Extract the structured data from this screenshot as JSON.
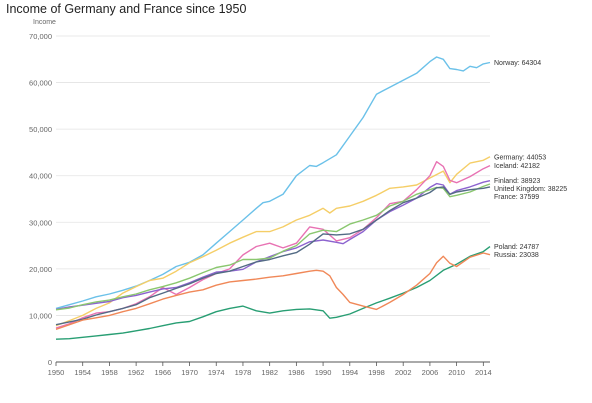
{
  "chart_data": {
    "type": "line",
    "title": "Income of Germany and France since 1950",
    "ylabel": "Income",
    "xlabel": "",
    "xlim": [
      1950,
      2015
    ],
    "ylim": [
      0,
      70000
    ],
    "yticks": [
      0,
      10000,
      20000,
      30000,
      40000,
      50000,
      60000,
      70000
    ],
    "ytick_labels": [
      "0",
      "10,000",
      "20,000",
      "30,000",
      "40,000",
      "50,000",
      "60,000",
      "70,000"
    ],
    "xticks": [
      1950,
      1954,
      1958,
      1962,
      1966,
      1970,
      1974,
      1978,
      1982,
      1986,
      1990,
      1994,
      1998,
      2002,
      2006,
      2010,
      2014
    ],
    "grid": true,
    "legend": "end-of-line labels",
    "series": [
      {
        "name": "Norway",
        "end_label": "Norway: 64304",
        "color": "#6bc1e9",
        "x": [
          1950,
          1952,
          1954,
          1956,
          1958,
          1960,
          1962,
          1964,
          1966,
          1968,
          1970,
          1972,
          1974,
          1976,
          1978,
          1980,
          1981,
          1982,
          1984,
          1986,
          1988,
          1989,
          1990,
          1992,
          1994,
          1996,
          1998,
          2000,
          2002,
          2004,
          2006,
          2007,
          2008,
          2009,
          2010,
          2011,
          2012,
          2013,
          2014,
          2015
        ],
        "y": [
          11500,
          12300,
          13100,
          14000,
          14600,
          15400,
          16300,
          17500,
          18800,
          20500,
          21400,
          23000,
          25500,
          28000,
          30500,
          33000,
          34200,
          34500,
          36000,
          40000,
          42200,
          42000,
          42800,
          44500,
          48500,
          52500,
          57500,
          59000,
          60500,
          62000,
          64500,
          65500,
          65000,
          63000,
          62800,
          62500,
          63500,
          63200,
          64000,
          64304
        ]
      },
      {
        "name": "Germany",
        "end_label": "Germany: 44053",
        "color": "#f5ce67",
        "x": [
          1950,
          1952,
          1954,
          1956,
          1958,
          1960,
          1962,
          1964,
          1966,
          1968,
          1970,
          1972,
          1974,
          1976,
          1978,
          1980,
          1982,
          1984,
          1986,
          1988,
          1990,
          1991,
          1992,
          1994,
          1996,
          1998,
          2000,
          2002,
          2004,
          2006,
          2008,
          2009,
          2010,
          2012,
          2014,
          2015
        ],
        "y": [
          7800,
          8900,
          10000,
          11500,
          12700,
          14800,
          16200,
          17500,
          18000,
          19500,
          21300,
          22600,
          24000,
          25500,
          26800,
          28000,
          28000,
          29000,
          30500,
          31500,
          33000,
          32000,
          33000,
          33500,
          34500,
          35800,
          37300,
          37600,
          38000,
          39500,
          41000,
          38500,
          40300,
          42700,
          43300,
          44053
        ]
      },
      {
        "name": "Iceland",
        "end_label": "Iceland: 42182",
        "color": "#e872b3",
        "x": [
          1950,
          1952,
          1954,
          1956,
          1958,
          1960,
          1962,
          1964,
          1966,
          1968,
          1970,
          1972,
          1974,
          1976,
          1978,
          1980,
          1982,
          1984,
          1986,
          1988,
          1990,
          1992,
          1994,
          1996,
          1998,
          2000,
          2002,
          2004,
          2006,
          2007,
          2008,
          2009,
          2010,
          2012,
          2014,
          2015
        ],
        "y": [
          7300,
          8200,
          9500,
          10500,
          10800,
          11500,
          12500,
          14000,
          16000,
          14500,
          16000,
          17700,
          19000,
          20000,
          23000,
          24800,
          25500,
          24500,
          25500,
          29000,
          28500,
          26000,
          26700,
          28500,
          31000,
          34000,
          34500,
          37000,
          40000,
          43000,
          42000,
          39000,
          38500,
          39800,
          41500,
          42182
        ]
      },
      {
        "name": "Finland",
        "end_label": "Finland: 38923",
        "color": "#8c63cf",
        "x": [
          1950,
          1952,
          1954,
          1956,
          1958,
          1960,
          1962,
          1964,
          1966,
          1968,
          1970,
          1972,
          1974,
          1976,
          1978,
          1980,
          1982,
          1984,
          1986,
          1988,
          1990,
          1992,
          1993,
          1994,
          1996,
          1998,
          2000,
          2002,
          2004,
          2006,
          2007,
          2008,
          2009,
          2010,
          2012,
          2014,
          2015
        ],
        "y": [
          11300,
          11800,
          12200,
          12600,
          13000,
          13800,
          14300,
          15000,
          15700,
          16000,
          17000,
          18200,
          19300,
          19500,
          19900,
          21500,
          22600,
          23700,
          24500,
          25800,
          26200,
          25700,
          25400,
          26300,
          28000,
          30500,
          32300,
          33700,
          35200,
          37500,
          38300,
          38000,
          36000,
          36800,
          37600,
          38600,
          38923
        ]
      },
      {
        "name": "United Kingdom",
        "end_label": "United Kingdom: 38225",
        "color": "#8ac76f",
        "x": [
          1950,
          1952,
          1954,
          1956,
          1958,
          1960,
          1962,
          1964,
          1966,
          1968,
          1970,
          1972,
          1974,
          1976,
          1978,
          1980,
          1982,
          1984,
          1986,
          1988,
          1990,
          1992,
          1994,
          1996,
          1998,
          2000,
          2002,
          2004,
          2006,
          2007,
          2008,
          2009,
          2010,
          2012,
          2014,
          2015
        ],
        "y": [
          11200,
          11600,
          12300,
          12900,
          13300,
          14000,
          14600,
          15500,
          16200,
          17000,
          18000,
          19200,
          20300,
          20800,
          22000,
          22000,
          22300,
          23800,
          25000,
          27500,
          28300,
          28000,
          29600,
          30500,
          31500,
          33500,
          34500,
          36000,
          37000,
          37500,
          37300,
          35500,
          35800,
          36500,
          37700,
          38225
        ]
      },
      {
        "name": "France",
        "end_label": "France: 37599",
        "color": "#536b85",
        "x": [
          1950,
          1952,
          1954,
          1956,
          1958,
          1960,
          1962,
          1964,
          1966,
          1968,
          1970,
          1972,
          1974,
          1976,
          1978,
          1980,
          1982,
          1984,
          1986,
          1988,
          1990,
          1992,
          1994,
          1996,
          1998,
          2000,
          2002,
          2004,
          2006,
          2007,
          2008,
          2009,
          2010,
          2012,
          2014,
          2015
        ],
        "y": [
          8000,
          8600,
          9200,
          10100,
          10800,
          11500,
          12300,
          13800,
          14800,
          15800,
          16800,
          18000,
          19000,
          19500,
          20500,
          21500,
          22000,
          22800,
          23500,
          25300,
          27500,
          27300,
          27500,
          28500,
          30500,
          32500,
          34200,
          35200,
          36400,
          37400,
          37600,
          36000,
          36500,
          37000,
          37300,
          37599
        ]
      },
      {
        "name": "Poland",
        "end_label": "Poland: 24787",
        "color": "#289e73",
        "x": [
          1950,
          1952,
          1954,
          1956,
          1958,
          1960,
          1962,
          1964,
          1966,
          1968,
          1970,
          1972,
          1974,
          1976,
          1978,
          1980,
          1982,
          1984,
          1986,
          1988,
          1990,
          1991,
          1992,
          1994,
          1996,
          1998,
          2000,
          2002,
          2004,
          2006,
          2008,
          2010,
          2012,
          2014,
          2015
        ],
        "y": [
          4900,
          5000,
          5300,
          5600,
          5900,
          6200,
          6700,
          7200,
          7800,
          8400,
          8700,
          9700,
          10800,
          11500,
          12000,
          11000,
          10500,
          11000,
          11300,
          11400,
          11000,
          9400,
          9600,
          10300,
          11500,
          12700,
          13700,
          14800,
          16000,
          17500,
          19700,
          21000,
          22700,
          23700,
          24787
        ]
      },
      {
        "name": "Russia",
        "end_label": "Russia: 23038",
        "color": "#f08858",
        "x": [
          1950,
          1952,
          1954,
          1956,
          1958,
          1960,
          1962,
          1964,
          1966,
          1968,
          1970,
          1972,
          1974,
          1976,
          1978,
          1980,
          1982,
          1984,
          1986,
          1988,
          1989,
          1990,
          1991,
          1992,
          1993,
          1994,
          1996,
          1998,
          2000,
          2002,
          2004,
          2006,
          2007,
          2008,
          2009,
          2010,
          2012,
          2014,
          2015
        ],
        "y": [
          7000,
          8000,
          9000,
          9500,
          10000,
          10800,
          11500,
          12500,
          13500,
          14300,
          15000,
          15500,
          16500,
          17200,
          17500,
          17800,
          18200,
          18500,
          19000,
          19500,
          19700,
          19500,
          18500,
          16000,
          14500,
          12800,
          12000,
          11300,
          12800,
          14500,
          16500,
          19000,
          21300,
          22700,
          21200,
          20500,
          22500,
          23400,
          23038
        ]
      }
    ]
  }
}
